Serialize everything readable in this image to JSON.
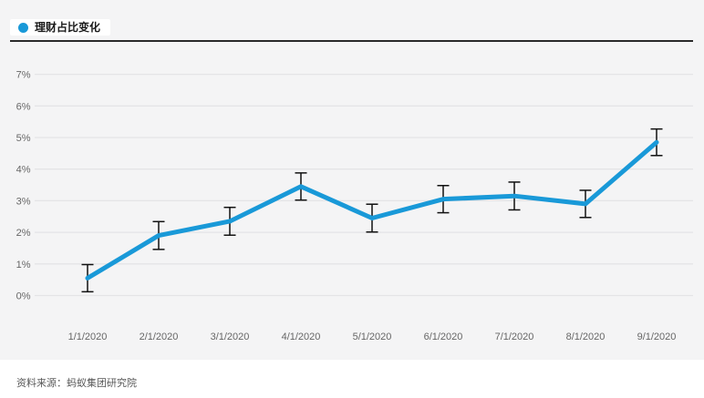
{
  "legend": {
    "label": "理财占比变化"
  },
  "footer": {
    "source": "资料来源：蚂蚁集团研究院"
  },
  "colors": {
    "panel_bg": "#f4f4f5",
    "page_bg": "#ffffff",
    "gridline": "#e4e4e6",
    "axis_text": "#666666",
    "series_line": "#1999d8",
    "error_bar": "#111111",
    "top_rule": "#2a2a2a",
    "legend_bg": "#ffffff",
    "legend_text": "#1a1a1a"
  },
  "chart_data": {
    "type": "line",
    "title": "理财占比变化",
    "x": [
      "1/1/2020",
      "2/1/2020",
      "3/1/2020",
      "4/1/2020",
      "5/1/2020",
      "6/1/2020",
      "7/1/2020",
      "8/1/2020",
      "9/1/2020"
    ],
    "series": [
      {
        "name": "理财占比变化",
        "values": [
          0.55,
          1.9,
          2.35,
          3.45,
          2.45,
          3.05,
          3.15,
          2.9,
          4.85
        ],
        "error": [
          0.43,
          0.44,
          0.44,
          0.43,
          0.44,
          0.43,
          0.44,
          0.43,
          0.42
        ],
        "color": "#1999d8"
      }
    ],
    "xlabel": "",
    "ylabel": "",
    "ylim": [
      0,
      7
    ],
    "y_tick_step": 1,
    "y_ticks": [
      "0%",
      "1%",
      "2%",
      "3%",
      "4%",
      "5%",
      "6%",
      "7%"
    ],
    "grid": true,
    "error_bars": true,
    "markers": false,
    "legend_position": "top-left"
  }
}
